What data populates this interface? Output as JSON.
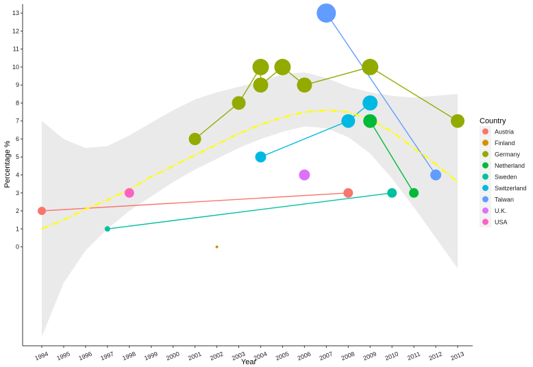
{
  "chart_data": {
    "type": "scatter",
    "title": "",
    "xlabel": "Year",
    "ylabel": "Percentage %",
    "x_ticks": [
      "1994",
      "1995",
      "1996",
      "1997",
      "1998",
      "1999",
      "2000",
      "2001",
      "2002",
      "2003",
      "2004",
      "2005",
      "2006",
      "2007",
      "2008",
      "2009",
      "2010",
      "2011",
      "2012",
      "2013"
    ],
    "y_ticks": [
      "0",
      "1",
      "2",
      "3",
      "4",
      "5",
      "6",
      "7",
      "8",
      "9",
      "10",
      "11",
      "12",
      "13"
    ],
    "xlim": [
      1994,
      2013
    ],
    "ylim": [
      -5.5,
      13.5
    ],
    "grid": false,
    "legend_title": "Country",
    "legend_position": "right",
    "series": [
      {
        "name": "Austria",
        "color": "#F8766D",
        "points": [
          {
            "x": 1994,
            "y": 2,
            "size": 6
          },
          {
            "x": 2008,
            "y": 3,
            "size": 7
          }
        ]
      },
      {
        "name": "Finland",
        "color": "#D39200",
        "points": [
          {
            "x": 2002,
            "y": 0,
            "size": 2
          }
        ]
      },
      {
        "name": "Germany",
        "color": "#93AA00",
        "points": [
          {
            "x": 2001,
            "y": 6,
            "size": 9
          },
          {
            "x": 2003,
            "y": 8,
            "size": 10
          },
          {
            "x": 2004,
            "y": 10,
            "size": 12
          },
          {
            "x": 2004,
            "y": 9,
            "size": 11
          },
          {
            "x": 2005,
            "y": 10,
            "size": 12
          },
          {
            "x": 2006,
            "y": 9,
            "size": 11
          },
          {
            "x": 2009,
            "y": 10,
            "size": 12
          },
          {
            "x": 2013,
            "y": 7,
            "size": 10
          }
        ]
      },
      {
        "name": "Netherland",
        "color": "#00BA38",
        "points": [
          {
            "x": 2009,
            "y": 7,
            "size": 10
          },
          {
            "x": 2011,
            "y": 3,
            "size": 7
          }
        ]
      },
      {
        "name": "Sweden",
        "color": "#00C19F",
        "points": [
          {
            "x": 1997,
            "y": 1,
            "size": 4
          },
          {
            "x": 2010,
            "y": 3,
            "size": 7
          }
        ]
      },
      {
        "name": "Switzerland",
        "color": "#00B9E3",
        "points": [
          {
            "x": 2004,
            "y": 5,
            "size": 8
          },
          {
            "x": 2008,
            "y": 7,
            "size": 10
          },
          {
            "x": 2009,
            "y": 8,
            "size": 11
          }
        ]
      },
      {
        "name": "Taiwan",
        "color": "#619CFF",
        "points": [
          {
            "x": 2007,
            "y": 13,
            "size": 14
          },
          {
            "x": 2012,
            "y": 4,
            "size": 8
          }
        ]
      },
      {
        "name": "U.K.",
        "color": "#DB72FB",
        "points": [
          {
            "x": 2006,
            "y": 4,
            "size": 8
          }
        ]
      },
      {
        "name": "USA",
        "color": "#FF61C3",
        "points": [
          {
            "x": 1998,
            "y": 3,
            "size": 7
          }
        ]
      }
    ],
    "trend": {
      "color": "#FFFF00",
      "band_color": "#E3E3E3",
      "points": [
        [
          1994,
          1.0
        ],
        [
          1995,
          1.5
        ],
        [
          1996,
          2.1
        ],
        [
          1997,
          2.6
        ],
        [
          1998,
          3.2
        ],
        [
          1999,
          3.9
        ],
        [
          2000,
          4.5
        ],
        [
          2001,
          5.1
        ],
        [
          2002,
          5.7
        ],
        [
          2003,
          6.3
        ],
        [
          2004,
          6.8
        ],
        [
          2005,
          7.2
        ],
        [
          2006,
          7.5
        ],
        [
          2007,
          7.6
        ],
        [
          2008,
          7.5
        ],
        [
          2009,
          7.1
        ],
        [
          2010,
          6.4
        ],
        [
          2011,
          5.5
        ],
        [
          2012,
          4.6
        ],
        [
          2013,
          3.6
        ]
      ],
      "lower": [
        [
          1994,
          -5.0
        ],
        [
          1995,
          -2.0
        ],
        [
          1996,
          -0.2
        ],
        [
          1997,
          1.0
        ],
        [
          1998,
          2.0
        ],
        [
          1999,
          2.8
        ],
        [
          2000,
          3.6
        ],
        [
          2001,
          4.3
        ],
        [
          2002,
          4.9
        ],
        [
          2003,
          5.5
        ],
        [
          2004,
          6.0
        ],
        [
          2005,
          6.4
        ],
        [
          2006,
          6.7
        ],
        [
          2007,
          6.6
        ],
        [
          2008,
          6.1
        ],
        [
          2009,
          5.2
        ],
        [
          2010,
          3.8
        ],
        [
          2011,
          2.2
        ],
        [
          2012,
          0.5
        ],
        [
          2013,
          -1.2
        ]
      ],
      "upper": [
        [
          1994,
          7.0
        ],
        [
          1995,
          6.0
        ],
        [
          1996,
          5.5
        ],
        [
          1997,
          5.6
        ],
        [
          1998,
          6.2
        ],
        [
          1999,
          6.9
        ],
        [
          2000,
          7.6
        ],
        [
          2001,
          8.2
        ],
        [
          2002,
          8.6
        ],
        [
          2003,
          8.9
        ],
        [
          2004,
          9.2
        ],
        [
          2005,
          9.6
        ],
        [
          2006,
          9.7
        ],
        [
          2007,
          9.4
        ],
        [
          2008,
          8.9
        ],
        [
          2009,
          8.6
        ],
        [
          2010,
          8.4
        ],
        [
          2011,
          8.3
        ],
        [
          2012,
          8.4
        ],
        [
          2013,
          8.5
        ]
      ]
    }
  }
}
